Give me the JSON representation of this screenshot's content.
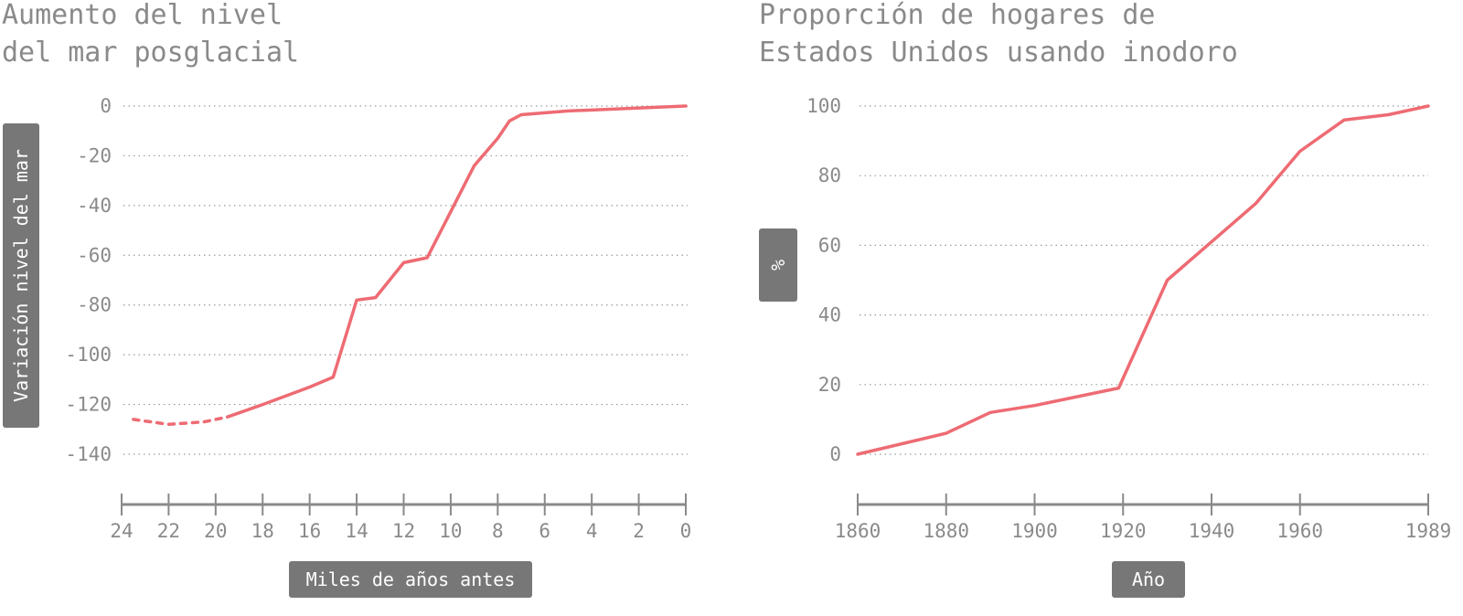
{
  "colors": {
    "series": "#ee6b73",
    "text": "#8a8a8a",
    "badge": "#777777"
  },
  "chart_data": [
    {
      "type": "line",
      "title": [
        "Aumento del nivel",
        "del mar posglacial"
      ],
      "xlabel": "Miles de años antes",
      "ylabel": "Variación nivel del mar",
      "xlim": [
        24,
        0
      ],
      "ylim": [
        -150,
        0
      ],
      "x_ticks": [
        "24",
        "22",
        "20",
        "18",
        "16",
        "14",
        "12",
        "10",
        "8",
        "6",
        "4",
        "2",
        "0"
      ],
      "y_ticks": [
        "0",
        "-20",
        "-40",
        "-60",
        "-80",
        "-100",
        "-120",
        "-140"
      ],
      "grid": true,
      "series": [
        {
          "style": "dashed",
          "points": [
            [
              23.5,
              -126
            ],
            [
              22,
              -128
            ],
            [
              20.5,
              -127
            ],
            [
              19.5,
              -125
            ]
          ]
        },
        {
          "style": "solid",
          "points": [
            [
              19.5,
              -125
            ],
            [
              18,
              -120
            ],
            [
              16,
              -113
            ],
            [
              15,
              -109
            ],
            [
              14,
              -78
            ],
            [
              13.2,
              -77
            ],
            [
              12,
              -63
            ],
            [
              11,
              -61
            ],
            [
              9,
              -24
            ],
            [
              8,
              -13
            ],
            [
              7.5,
              -6
            ],
            [
              7,
              -3.5
            ],
            [
              5,
              -2
            ],
            [
              0,
              0
            ]
          ]
        }
      ]
    },
    {
      "type": "line",
      "title": [
        "Proporción de hogares de",
        "Estados Unidos usando inodoro"
      ],
      "xlabel": "Año",
      "ylabel": "%",
      "xlim": [
        1860,
        1989
      ],
      "ylim": [
        -15,
        100
      ],
      "x_ticks": [
        "1860",
        "1880",
        "1900",
        "1920",
        "1940",
        "1960",
        "1989"
      ],
      "y_ticks": [
        "100",
        "80",
        "60",
        "40",
        "20",
        "0"
      ],
      "grid": true,
      "series": [
        {
          "style": "solid",
          "points": [
            [
              1860,
              0
            ],
            [
              1880,
              6
            ],
            [
              1890,
              12
            ],
            [
              1900,
              14
            ],
            [
              1919,
              19
            ],
            [
              1930,
              50
            ],
            [
              1940,
              61
            ],
            [
              1950,
              72
            ],
            [
              1960,
              87
            ],
            [
              1970,
              96
            ],
            [
              1980,
              97.5
            ],
            [
              1989,
              100
            ]
          ]
        }
      ]
    }
  ]
}
